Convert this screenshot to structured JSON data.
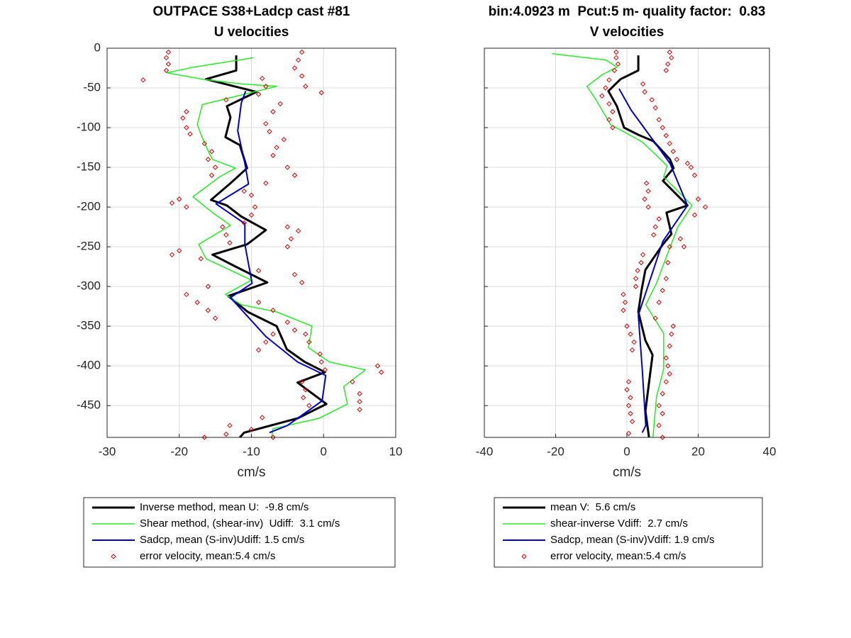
{
  "chart_data": [
    {
      "type": "line",
      "title": "OUTPACE S38+Ladcp cast #81",
      "subtitle": "U velocities",
      "xlabel": "cm/s",
      "xlim": [
        -30,
        10
      ],
      "xticks": [
        -30,
        -20,
        -10,
        0,
        10
      ],
      "ylim": [
        -490,
        0
      ],
      "yticks": [
        0,
        -50,
        -100,
        -150,
        -200,
        -250,
        -300,
        -350,
        -400,
        -450
      ],
      "grid": true,
      "series": [
        {
          "name": "Inverse method, mean U:  -9.8 cm/s",
          "color": "#000000",
          "style": "line",
          "linewidth": 3,
          "x": [
            -12.1,
            -12.1,
            -16.3,
            -9.3,
            -13.4,
            -12.9,
            -13.6,
            -11.6,
            -10.6,
            -12.9,
            -15.6,
            -13.4,
            -11.4,
            -8,
            -10.6,
            -15.4,
            -12.4,
            -7.8,
            -13.2,
            -10.5,
            -6.5,
            -5.1,
            -2.6,
            0.2,
            -3.6,
            0.4,
            -3.6,
            -11,
            -11.6
          ],
          "y": [
            -9,
            -28,
            -39,
            -55,
            -73,
            -87,
            -112,
            -122,
            -151,
            -170,
            -191,
            -198,
            -212,
            -229,
            -247,
            -260,
            -274,
            -295,
            -312,
            -332,
            -350,
            -379,
            -395,
            -408,
            -421,
            -448,
            -466,
            -484,
            -490
          ]
        },
        {
          "name": "Shear method, (shear-inv)  Udiff:  3.1 cm/s",
          "color": "#22ee22",
          "style": "line",
          "linewidth": 1.5,
          "x": [
            -9.7,
            -18.1,
            -21.7,
            -16.8,
            -11.4,
            -6.5,
            -16.8,
            -17.5,
            -16.8,
            -15.9,
            -15.4,
            -12.2,
            -14.4,
            -18.1,
            -15.4,
            -12.9,
            -17.3,
            -16.3,
            -10,
            -13.6,
            -11.4,
            -6.5,
            -1.6,
            -2.1,
            0.8,
            5.8,
            2.8,
            3.3,
            -0.6,
            -7,
            -7.2
          ],
          "y": [
            -12,
            -24,
            -31,
            -39,
            -45,
            -48,
            -71,
            -96,
            -113,
            -131,
            -140,
            -151,
            -162,
            -187,
            -207,
            -223,
            -247,
            -265,
            -292,
            -310,
            -323,
            -332,
            -350,
            -377,
            -395,
            -405,
            -426,
            -448,
            -466,
            -479,
            -490
          ]
        },
        {
          "name": "Sadcp, mean (S-inv)Udiff: 1.5 cm/s",
          "color": "#0000cc",
          "style": "line",
          "linewidth": 2,
          "x": [
            -10.8,
            -11.4,
            -11.9,
            -10.9,
            -10.4,
            -14.9,
            -10.9,
            -10.9,
            -9.9,
            -12.9,
            -8,
            -3.6,
            0.3,
            -0.2,
            -5,
            -7.5
          ],
          "y": [
            -54,
            -69,
            -104,
            -145,
            -171,
            -196,
            -221,
            -247,
            -296,
            -314,
            -363,
            -395,
            -412,
            -444,
            -475,
            -484
          ]
        },
        {
          "name": "error velocity, mean:5.4 cm/s",
          "color": "#dd0000",
          "style": "markers",
          "linewidth": 1,
          "x": [
            -21.5,
            -21.8,
            -21.5,
            -21.8,
            -25,
            -3,
            -3.5,
            -4,
            -3,
            -2.5,
            -0.3,
            -8.5,
            -8,
            -9,
            -6,
            -7,
            -13.5,
            -19,
            -19.5,
            -19,
            -18.5,
            -8,
            -7.5,
            -5.5,
            -6.5,
            -7,
            -16.5,
            -15.5,
            -16,
            -15,
            -15.5,
            -5,
            -4,
            -8,
            -11,
            -20,
            -21,
            -19,
            -10,
            -9.5,
            -10,
            -11,
            -14,
            -13.5,
            -13,
            -5,
            -3.5,
            -4.5,
            -5,
            -20,
            -21,
            -17,
            -9,
            -4,
            -3,
            -16,
            -19,
            -17.5,
            -16,
            -15,
            -9,
            -7,
            -5,
            -4,
            -2.5,
            -2,
            -7,
            -8,
            -9,
            -0.5,
            -0.3,
            0.2,
            7.5,
            8,
            -3,
            -2.5,
            -2.8,
            -2,
            4,
            5,
            5,
            5,
            -8.5,
            -13,
            -10,
            -13.5,
            -16.5,
            -7
          ],
          "y": [
            -5,
            -12,
            -20,
            -28,
            -40,
            -5,
            -15,
            -25,
            -35,
            -48,
            -56,
            -38,
            -48,
            -58,
            -70,
            -80,
            -65,
            -80,
            -88,
            -100,
            -108,
            -95,
            -105,
            -115,
            -125,
            -135,
            -120,
            -130,
            -140,
            -150,
            -160,
            -150,
            -160,
            -170,
            -180,
            -190,
            -195,
            -200,
            -185,
            -200,
            -210,
            -220,
            -225,
            -235,
            -245,
            -225,
            -230,
            -240,
            -250,
            -255,
            -260,
            -265,
            -280,
            -285,
            -295,
            -300,
            -310,
            -320,
            -330,
            -340,
            -320,
            -330,
            -345,
            -355,
            -360,
            -370,
            -360,
            -370,
            -380,
            -385,
            -395,
            -405,
            -400,
            -408,
            -420,
            -430,
            -440,
            -450,
            -420,
            -435,
            -445,
            -455,
            -465,
            -475,
            -480,
            -486,
            -490,
            -490
          ]
        }
      ]
    },
    {
      "type": "line",
      "title": "bin:4.0923 m  Pcut:5 m- quality factor:  0.83",
      "subtitle": "V velocities",
      "xlabel": "cm/s",
      "xlim": [
        -40,
        40
      ],
      "xticks": [
        -40,
        -20,
        0,
        20,
        40
      ],
      "ylim": [
        -490,
        0
      ],
      "yticks": [
        0,
        -50,
        -100,
        -150,
        -200,
        -250,
        -300,
        -350,
        -400,
        -450
      ],
      "grid": true,
      "series": [
        {
          "name": "mean V:  5.6 cm/s",
          "color": "#000000",
          "style": "line",
          "linewidth": 3,
          "x": [
            3.2,
            3.2,
            -1.8,
            -5.2,
            -2.8,
            -0.8,
            3.2,
            7.4,
            12.1,
            13.1,
            10.1,
            17,
            11.1,
            12.5,
            10.1,
            8.1,
            5.2,
            4.1,
            3.2,
            5.2,
            7.2,
            6.2,
            5.2,
            6.2
          ],
          "y": [
            -9,
            -28,
            -39,
            -54,
            -73,
            -100,
            -109,
            -117,
            -140,
            -151,
            -167,
            -198,
            -207,
            -234,
            -247,
            -260,
            -279,
            -305,
            -332,
            -368,
            -386,
            -421,
            -457,
            -490
          ]
        },
        {
          "name": "shear-inverse Vdiff:  2.7 cm/s",
          "color": "#22ee22",
          "style": "line",
          "linewidth": 1.5,
          "x": [
            -21,
            -5.8,
            -2.8,
            -6.8,
            -11.2,
            -8.8,
            -4.6,
            4.3,
            11.3,
            10.3,
            18.3,
            14.3,
            11.3,
            8.3,
            5.3,
            10.3,
            10.3,
            8.3,
            7.3
          ],
          "y": [
            -7,
            -15,
            -24,
            -33,
            -48,
            -64,
            -96,
            -118,
            -148,
            -162,
            -198,
            -225,
            -260,
            -296,
            -323,
            -359,
            -404,
            -439,
            -490
          ]
        },
        {
          "name": "Sadcp, mean (S-inv)Vdiff: 1.9 cm/s",
          "color": "#0000cc",
          "style": "line",
          "linewidth": 2,
          "x": [
            -2.2,
            1.2,
            12.1,
            17,
            10.1,
            3.2,
            4.3,
            5.3,
            4.3
          ],
          "y": [
            -51,
            -78,
            -145,
            -198,
            -243,
            -336,
            -404,
            -475,
            -484
          ]
        },
        {
          "name": "error velocity, mean:5.4 cm/s",
          "color": "#dd0000",
          "style": "markers",
          "linewidth": 1,
          "x": [
            -3,
            -3,
            -2.5,
            -3.5,
            12,
            12.5,
            11.5,
            11,
            -5,
            -6,
            -7,
            -5,
            -4,
            -5,
            -4,
            4.5,
            5,
            7,
            8,
            9,
            10,
            11,
            12,
            13,
            14,
            17,
            18,
            19,
            6,
            5,
            6,
            5.5,
            20,
            22,
            19,
            9,
            8,
            7.5,
            15,
            16,
            4.5,
            4,
            3,
            2.5,
            2.5,
            -1,
            -0.5,
            -1,
            12,
            11.5,
            11,
            10,
            9,
            8,
            0,
            1,
            2,
            1.5,
            13,
            12.5,
            12,
            11,
            11.5,
            12,
            0.5,
            0,
            1,
            0.5,
            1,
            1.5,
            11,
            10,
            9,
            10,
            9,
            0.5,
            10
          ],
          "y": [
            -5,
            -12,
            -20,
            -28,
            -5,
            -12,
            -20,
            -28,
            -40,
            -50,
            -60,
            -70,
            -80,
            -90,
            -100,
            -45,
            -55,
            -65,
            -75,
            -90,
            -100,
            -110,
            -120,
            -130,
            -140,
            -145,
            -150,
            -160,
            -180,
            -190,
            -200,
            -170,
            -190,
            -200,
            -210,
            -215,
            -225,
            -235,
            -240,
            -250,
            -260,
            -270,
            -280,
            -290,
            -300,
            -310,
            -320,
            -330,
            -250,
            -270,
            -290,
            -305,
            -320,
            -340,
            -350,
            -360,
            -370,
            -380,
            -350,
            -360,
            -375,
            -390,
            -400,
            -410,
            -420,
            -430,
            -440,
            -450,
            -460,
            -470,
            -420,
            -435,
            -450,
            -460,
            -475,
            -485,
            -490
          ]
        }
      ]
    }
  ]
}
